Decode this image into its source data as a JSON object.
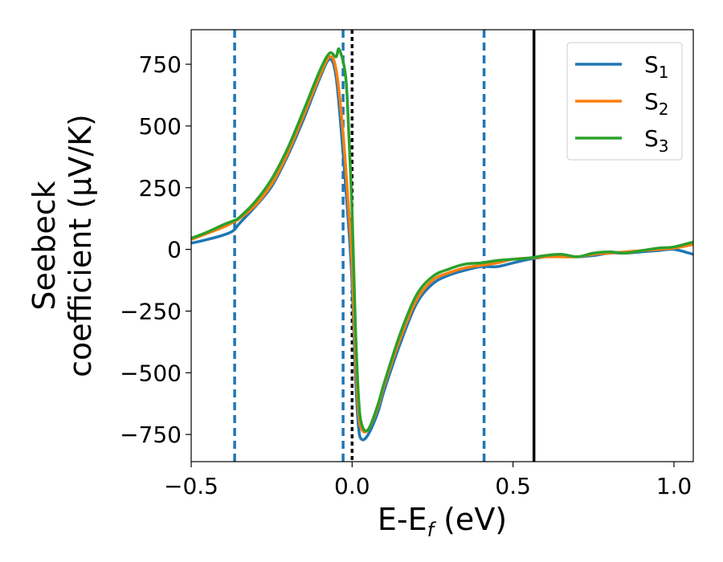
{
  "chart_data": {
    "type": "line",
    "xlabel": {
      "main": "E-E",
      "sub": "f",
      "tail": " (eV)"
    },
    "ylabel": {
      "line1": "Seebeck",
      "line2": "coefficient  (μV/K)"
    },
    "xlim": [
      -0.5,
      1.06
    ],
    "ylim": [
      -860,
      890
    ],
    "x_ticks": [
      -0.5,
      0.0,
      0.5,
      1.0
    ],
    "x_tick_labels": [
      "−0.5",
      "0.0",
      "0.5",
      "1.0"
    ],
    "y_ticks": [
      750,
      500,
      250,
      0,
      -250,
      -500,
      -750
    ],
    "y_tick_labels": [
      "750",
      "500",
      "250",
      "0",
      "−250",
      "−500",
      "−750"
    ],
    "grid": false,
    "legend_position": "top-right",
    "series": [
      {
        "name": "S",
        "name_sub": "1",
        "color": "#1f77b4",
        "x": [
          -0.5,
          -0.45,
          -0.4,
          -0.37,
          -0.35,
          -0.3,
          -0.25,
          -0.2,
          -0.15,
          -0.1,
          -0.07,
          -0.05,
          -0.03,
          -0.01,
          0.0,
          0.01,
          0.02,
          0.03,
          0.05,
          0.08,
          0.1,
          0.15,
          0.2,
          0.25,
          0.3,
          0.35,
          0.4,
          0.45,
          0.5,
          0.55,
          0.6,
          0.65,
          0.7,
          0.75,
          0.8,
          0.85,
          0.9,
          0.95,
          1.0,
          1.06
        ],
        "y": [
          25,
          40,
          58,
          75,
          105,
          175,
          255,
          380,
          530,
          695,
          770,
          700,
          420,
          80,
          -140,
          -500,
          -720,
          -770,
          -750,
          -660,
          -570,
          -380,
          -220,
          -140,
          -105,
          -85,
          -70,
          -70,
          -55,
          -40,
          -30,
          -25,
          -30,
          -25,
          -15,
          -15,
          -10,
          -5,
          0,
          -20
        ]
      },
      {
        "name": "S",
        "name_sub": "2",
        "color": "#ff7f0e",
        "x": [
          -0.5,
          -0.45,
          -0.4,
          -0.37,
          -0.35,
          -0.3,
          -0.25,
          -0.2,
          -0.15,
          -0.1,
          -0.07,
          -0.05,
          -0.03,
          -0.01,
          0.0,
          0.01,
          0.02,
          0.03,
          0.05,
          0.08,
          0.1,
          0.15,
          0.2,
          0.25,
          0.3,
          0.35,
          0.4,
          0.45,
          0.5,
          0.55,
          0.6,
          0.65,
          0.7,
          0.75,
          0.8,
          0.85,
          0.9,
          0.95,
          1.0,
          1.06
        ],
        "y": [
          40,
          65,
          90,
          110,
          125,
          180,
          265,
          390,
          545,
          705,
          780,
          730,
          500,
          150,
          -60,
          -420,
          -660,
          -730,
          -730,
          -640,
          -550,
          -360,
          -205,
          -125,
          -95,
          -75,
          -65,
          -55,
          -40,
          -35,
          -30,
          -30,
          -30,
          -20,
          -15,
          -10,
          -5,
          0,
          5,
          20
        ]
      },
      {
        "name": "S",
        "name_sub": "3",
        "color": "#2ca02c",
        "x": [
          -0.5,
          -0.45,
          -0.4,
          -0.37,
          -0.35,
          -0.3,
          -0.25,
          -0.2,
          -0.15,
          -0.1,
          -0.07,
          -0.05,
          -0.04,
          -0.02,
          -0.01,
          0.0,
          0.01,
          0.02,
          0.03,
          0.05,
          0.08,
          0.1,
          0.15,
          0.2,
          0.25,
          0.3,
          0.35,
          0.4,
          0.45,
          0.5,
          0.55,
          0.6,
          0.65,
          0.7,
          0.75,
          0.8,
          0.85,
          0.9,
          0.95,
          1.0,
          1.06
        ],
        "y": [
          45,
          70,
          100,
          115,
          130,
          195,
          285,
          410,
          565,
          725,
          795,
          780,
          810,
          700,
          460,
          150,
          -300,
          -600,
          -710,
          -730,
          -630,
          -540,
          -340,
          -185,
          -110,
          -80,
          -60,
          -55,
          -45,
          -40,
          -35,
          -25,
          -20,
          -30,
          -15,
          -10,
          -15,
          -5,
          5,
          10,
          30
        ]
      }
    ],
    "vlines": [
      {
        "x": -0.365,
        "color": "#1f77b4",
        "style": "dashed"
      },
      {
        "x": -0.028,
        "color": "#1f77b4",
        "style": "dashed"
      },
      {
        "x": 0.41,
        "color": "#1f77b4",
        "style": "dashed"
      },
      {
        "x": 0.0,
        "color": "#000000",
        "style": "dotted"
      },
      {
        "x": 0.565,
        "color": "#000000",
        "style": "solid"
      }
    ]
  }
}
